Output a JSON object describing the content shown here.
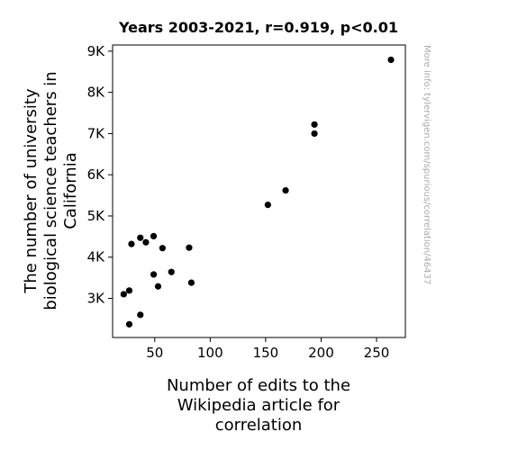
{
  "chart_data": {
    "type": "scatter",
    "title": "Years 2003-2021, r=0.919, p<0.01",
    "xlabel_lines": [
      "Number of edits to the",
      "Wikipedia article for",
      "correlation"
    ],
    "ylabel_lines": [
      "The number of university",
      "biological science teachers in",
      "California"
    ],
    "side_note": "More info: tylervigen.com/spurious/correlation/46437",
    "xlim": [
      12,
      276
    ],
    "ylim": [
      2050,
      9150
    ],
    "xticks": [
      50,
      100,
      150,
      200,
      250
    ],
    "xtick_labels": [
      "50",
      "100",
      "150",
      "200",
      "250"
    ],
    "yticks": [
      3000,
      4000,
      5000,
      6000,
      7000,
      8000,
      9000
    ],
    "ytick_labels": [
      "3K",
      "4K",
      "5K",
      "6K",
      "7K",
      "8K",
      "9K"
    ],
    "grid": false,
    "marker_color": "#000000",
    "points": [
      {
        "x": 22,
        "y": 3100
      },
      {
        "x": 27,
        "y": 3190
      },
      {
        "x": 27,
        "y": 2370
      },
      {
        "x": 29,
        "y": 4320
      },
      {
        "x": 37,
        "y": 4470
      },
      {
        "x": 37,
        "y": 2600
      },
      {
        "x": 42,
        "y": 4360
      },
      {
        "x": 49,
        "y": 4510
      },
      {
        "x": 49,
        "y": 3580
      },
      {
        "x": 53,
        "y": 3290
      },
      {
        "x": 57,
        "y": 4220
      },
      {
        "x": 65,
        "y": 3640
      },
      {
        "x": 81,
        "y": 4230
      },
      {
        "x": 83,
        "y": 3380
      },
      {
        "x": 152,
        "y": 5270
      },
      {
        "x": 168,
        "y": 5620
      },
      {
        "x": 194,
        "y": 7220
      },
      {
        "x": 194,
        "y": 7000
      },
      {
        "x": 263,
        "y": 8790
      }
    ]
  }
}
